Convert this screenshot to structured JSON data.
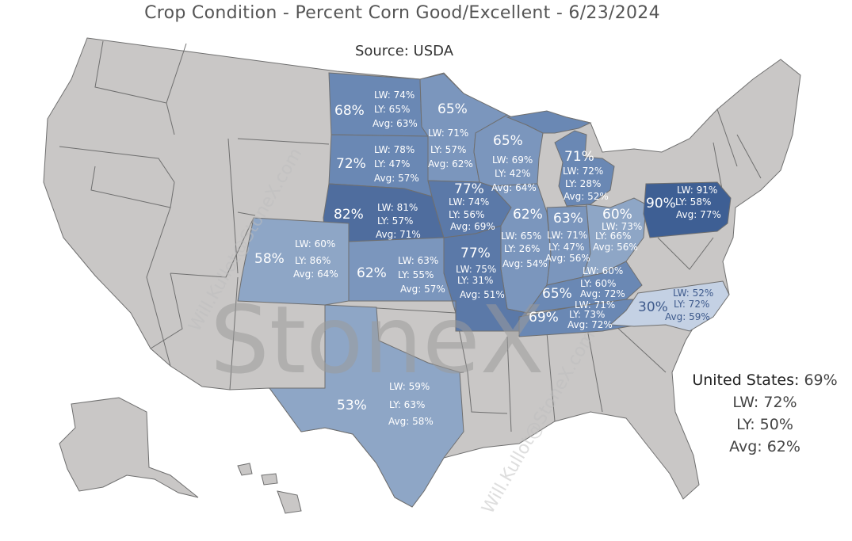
{
  "title": "Crop Condition - Percent Corn Good/Excellent - 6/23/2024",
  "source": "Source: USDA",
  "watermark_logo": "StoneX",
  "watermark_email": "Will.Kullot@StoneX.com",
  "summary": {
    "us_label": "United States:",
    "us_value": "69%",
    "lw": "LW: 72%",
    "ly": "LY: 50%",
    "avg": "Avg: 62%"
  },
  "colors": {
    "background": "#ffffff",
    "no_data_state": "#c9c7c6",
    "state_border": "#6f6f6f",
    "label_light": "#ffffff",
    "label_dark": "#3e5a8c"
  },
  "legend_scale": [
    {
      "max_pct": 30,
      "color": "#c4d1e4"
    },
    {
      "max_pct": 59,
      "color": "#8ea6c6"
    },
    {
      "max_pct": 65,
      "color": "#7b96bd"
    },
    {
      "max_pct": 72,
      "color": "#6a88b4"
    },
    {
      "max_pct": 78,
      "color": "#5b79a8"
    },
    {
      "max_pct": 82,
      "color": "#4f6d9e"
    },
    {
      "max_pct": 100,
      "color": "#3e5f94"
    }
  ],
  "states": [
    {
      "id": "ND",
      "name": "North Dakota",
      "current": "68%",
      "lw": "LW: 74%",
      "ly": "LY: 65%",
      "avg": "Avg: 63%"
    },
    {
      "id": "MN",
      "name": "Minnesota",
      "current": "65%",
      "lw": "LW: 71%",
      "ly": "LY: 57%",
      "avg": "Avg: 62%"
    },
    {
      "id": "WI",
      "name": "Wisconsin",
      "current": "65%",
      "lw": "LW: 69%",
      "ly": "LY: 42%",
      "avg": "Avg: 64%"
    },
    {
      "id": "MI",
      "name": "Michigan",
      "current": "71%",
      "lw": "LW: 72%",
      "ly": "LY: 28%",
      "avg": "Avg: 52%"
    },
    {
      "id": "SD",
      "name": "South Dakota",
      "current": "72%",
      "lw": "LW: 78%",
      "ly": "LY: 47%",
      "avg": "Avg: 57%"
    },
    {
      "id": "IA",
      "name": "Iowa",
      "current": "77%",
      "lw": "LW: 74%",
      "ly": "LY: 56%",
      "avg": "Avg: 69%"
    },
    {
      "id": "NE",
      "name": "Nebraska",
      "current": "82%",
      "lw": "LW: 81%",
      "ly": "LY: 57%",
      "avg": "Avg: 71%"
    },
    {
      "id": "PA",
      "name": "Pennsylvania",
      "current": "90%",
      "lw": "LW: 91%",
      "ly": "LY: 58%",
      "avg": "Avg: 77%"
    },
    {
      "id": "OH",
      "name": "Ohio",
      "current": "60%",
      "lw": "LW: 73%",
      "ly": "LY: 66%",
      "avg": "Avg: 56%"
    },
    {
      "id": "IN",
      "name": "Indiana",
      "current": "63%",
      "lw": "LW: 71%",
      "ly": "LY: 47%",
      "avg": "Avg: 56%"
    },
    {
      "id": "IL",
      "name": "Illinois",
      "current": "62%",
      "lw": "LW: 65%",
      "ly": "LY: 26%",
      "avg": "Avg: 54%"
    },
    {
      "id": "MO",
      "name": "Missouri",
      "current": "77%",
      "lw": "LW: 75%",
      "ly": "LY: 31%",
      "avg": "Avg: 51%"
    },
    {
      "id": "KS",
      "name": "Kansas",
      "current": "62%",
      "lw": "LW: 63%",
      "ly": "LY: 55%",
      "avg": "Avg: 57%"
    },
    {
      "id": "CO",
      "name": "Colorado",
      "current": "58%",
      "lw": "LW: 60%",
      "ly": "LY: 86%",
      "avg": "Avg: 64%"
    },
    {
      "id": "KY",
      "name": "Kentucky",
      "current": "65%",
      "lw": "LW: 60%",
      "ly": "LY: 60%",
      "avg": "Avg: 72%"
    },
    {
      "id": "TN",
      "name": "Tennessee",
      "current": "69%",
      "lw": "LW: 71%",
      "ly": "LY: 73%",
      "avg": "Avg: 72%"
    },
    {
      "id": "NC",
      "name": "North Carolina",
      "current": "30%",
      "lw": "LW: 52%",
      "ly": "LY: 72%",
      "avg": "Avg: 59%"
    },
    {
      "id": "TX",
      "name": "Texas",
      "current": "53%",
      "lw": "LW: 59%",
      "ly": "LY: 63%",
      "avg": "Avg: 58%"
    }
  ]
}
